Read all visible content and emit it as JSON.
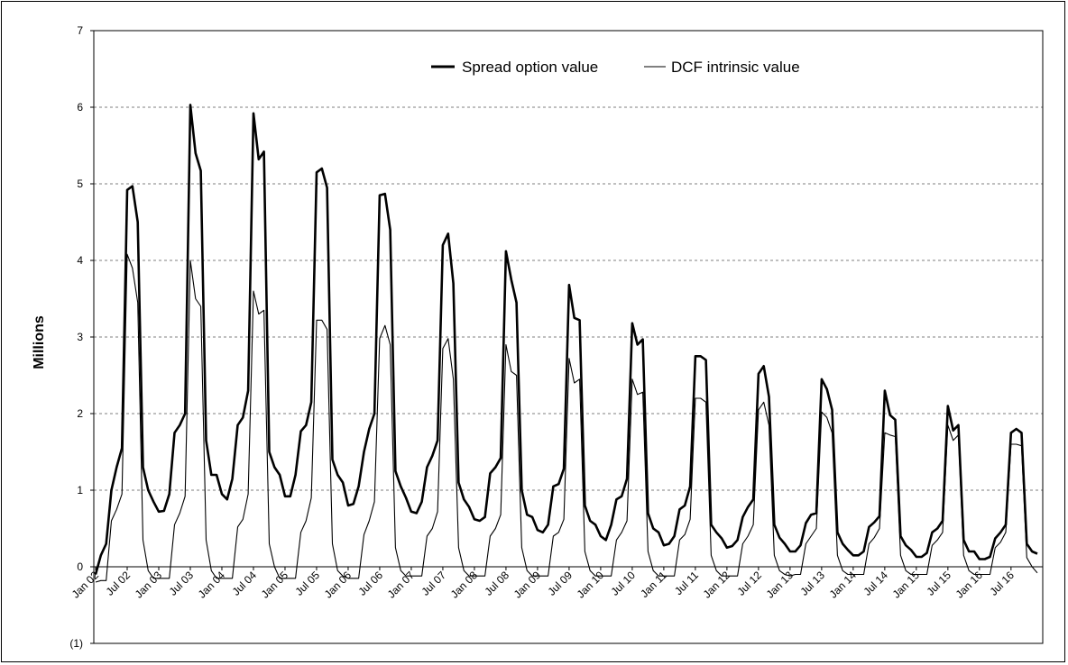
{
  "chart_data": {
    "type": "line",
    "title": "",
    "xlabel": "",
    "ylabel": "Millions",
    "ylim": [
      -1,
      7
    ],
    "y_ticks": [
      -1,
      0,
      1,
      2,
      3,
      4,
      5,
      6,
      7
    ],
    "y_tick_labels": [
      "(1)",
      "0",
      "1",
      "2",
      "3",
      "4",
      "5",
      "6",
      "7"
    ],
    "grid": "horizontal dashed",
    "legend_position": "top-right",
    "x_tick_labels": [
      "Jan 02",
      "Jul 02",
      "Jan 03",
      "Jul 03",
      "Jan 04",
      "Jul 04",
      "Jan 05",
      "Jul 05",
      "Jan 06",
      "Jul 06",
      "Jan 07",
      "Jul 07",
      "Jan 08",
      "Jul 08",
      "Jan 09",
      "Jul 09",
      "Jan 10",
      "Jul 10",
      "Jan 11",
      "Jul 11",
      "Jan 12",
      "Jul 12",
      "Jan 13",
      "Jul 13",
      "Jan 14",
      "Jul 14",
      "Jan 15",
      "Jul 15",
      "Jan 16",
      "Jul 16"
    ],
    "series": [
      {
        "name": "Spread option value",
        "line_weight": "thick",
        "values": [
          -0.1,
          0.15,
          0.3,
          1.0,
          1.3,
          1.55,
          4.92,
          4.97,
          4.5,
          1.3,
          1.0,
          0.85,
          0.72,
          0.73,
          0.95,
          1.75,
          1.85,
          2.0,
          6.03,
          5.4,
          5.17,
          1.65,
          1.2,
          1.2,
          0.95,
          0.88,
          1.15,
          1.85,
          1.95,
          2.3,
          5.92,
          5.32,
          5.42,
          1.5,
          1.3,
          1.2,
          0.92,
          0.92,
          1.2,
          1.77,
          1.85,
          2.15,
          5.15,
          5.2,
          4.95,
          1.4,
          1.2,
          1.1,
          0.8,
          0.82,
          1.05,
          1.5,
          1.8,
          2.0,
          4.85,
          4.87,
          4.4,
          1.25,
          1.05,
          0.9,
          0.72,
          0.7,
          0.85,
          1.3,
          1.45,
          1.65,
          4.2,
          4.35,
          3.7,
          1.1,
          0.88,
          0.78,
          0.62,
          0.6,
          0.65,
          1.22,
          1.3,
          1.42,
          4.12,
          3.75,
          3.45,
          1.0,
          0.68,
          0.65,
          0.48,
          0.45,
          0.55,
          1.05,
          1.08,
          1.28,
          3.68,
          3.25,
          3.22,
          0.8,
          0.6,
          0.55,
          0.4,
          0.35,
          0.55,
          0.88,
          0.92,
          1.15,
          3.18,
          2.9,
          2.97,
          0.7,
          0.5,
          0.45,
          0.28,
          0.3,
          0.4,
          0.75,
          0.8,
          1.05,
          2.75,
          2.75,
          2.7,
          0.55,
          0.45,
          0.37,
          0.25,
          0.27,
          0.35,
          0.65,
          0.78,
          0.88,
          2.52,
          2.62,
          2.22,
          0.55,
          0.38,
          0.3,
          0.2,
          0.2,
          0.28,
          0.57,
          0.68,
          0.7,
          2.45,
          2.32,
          2.05,
          0.45,
          0.3,
          0.22,
          0.15,
          0.15,
          0.2,
          0.52,
          0.58,
          0.66,
          2.3,
          1.98,
          1.92,
          0.4,
          0.28,
          0.22,
          0.13,
          0.13,
          0.18,
          0.45,
          0.5,
          0.6,
          2.1,
          1.78,
          1.85,
          0.35,
          0.2,
          0.2,
          0.1,
          0.1,
          0.13,
          0.37,
          0.45,
          0.55,
          1.75,
          1.8,
          1.75,
          0.3,
          0.2,
          0.17
        ]
      },
      {
        "name": "DCF intrinsic value",
        "line_weight": "thin",
        "values": [
          -0.2,
          -0.18,
          -0.18,
          0.6,
          0.75,
          0.95,
          4.08,
          3.9,
          3.45,
          0.35,
          -0.05,
          -0.15,
          -0.15,
          -0.15,
          -0.15,
          0.55,
          0.7,
          0.92,
          4.0,
          3.5,
          3.4,
          0.35,
          -0.05,
          -0.15,
          -0.15,
          -0.15,
          -0.15,
          0.52,
          0.62,
          0.95,
          3.6,
          3.3,
          3.35,
          0.3,
          0.0,
          -0.15,
          -0.15,
          -0.15,
          -0.15,
          0.45,
          0.6,
          0.9,
          3.22,
          3.22,
          3.1,
          0.3,
          -0.05,
          -0.12,
          -0.15,
          -0.15,
          -0.15,
          0.42,
          0.6,
          0.85,
          2.98,
          3.15,
          2.9,
          0.25,
          -0.05,
          -0.12,
          -0.12,
          -0.12,
          -0.12,
          0.4,
          0.5,
          0.72,
          2.85,
          2.98,
          2.45,
          0.25,
          -0.05,
          -0.12,
          -0.12,
          -0.12,
          -0.12,
          0.4,
          0.5,
          0.68,
          2.9,
          2.55,
          2.5,
          0.25,
          -0.05,
          -0.12,
          -0.12,
          -0.12,
          -0.12,
          0.4,
          0.45,
          0.62,
          2.72,
          2.4,
          2.45,
          0.2,
          -0.05,
          -0.12,
          -0.12,
          -0.12,
          -0.12,
          0.35,
          0.45,
          0.6,
          2.45,
          2.25,
          2.28,
          0.2,
          -0.05,
          -0.12,
          -0.12,
          -0.12,
          -0.12,
          0.35,
          0.42,
          0.62,
          2.2,
          2.2,
          2.15,
          0.15,
          -0.05,
          -0.12,
          -0.12,
          -0.12,
          -0.12,
          0.3,
          0.4,
          0.55,
          2.05,
          2.15,
          1.85,
          0.15,
          -0.05,
          -0.1,
          -0.12,
          -0.1,
          -0.1,
          0.3,
          0.4,
          0.5,
          2.02,
          1.95,
          1.75,
          0.15,
          -0.05,
          -0.1,
          -0.1,
          -0.1,
          -0.1,
          0.3,
          0.38,
          0.5,
          1.75,
          1.72,
          1.7,
          0.15,
          -0.05,
          -0.1,
          -0.1,
          -0.1,
          -0.1,
          0.28,
          0.35,
          0.45,
          1.85,
          1.65,
          1.72,
          0.15,
          -0.05,
          -0.1,
          -0.1,
          -0.1,
          -0.1,
          0.25,
          0.32,
          0.45,
          1.6,
          1.6,
          1.58,
          0.12,
          0.0,
          -0.08
        ]
      }
    ]
  }
}
